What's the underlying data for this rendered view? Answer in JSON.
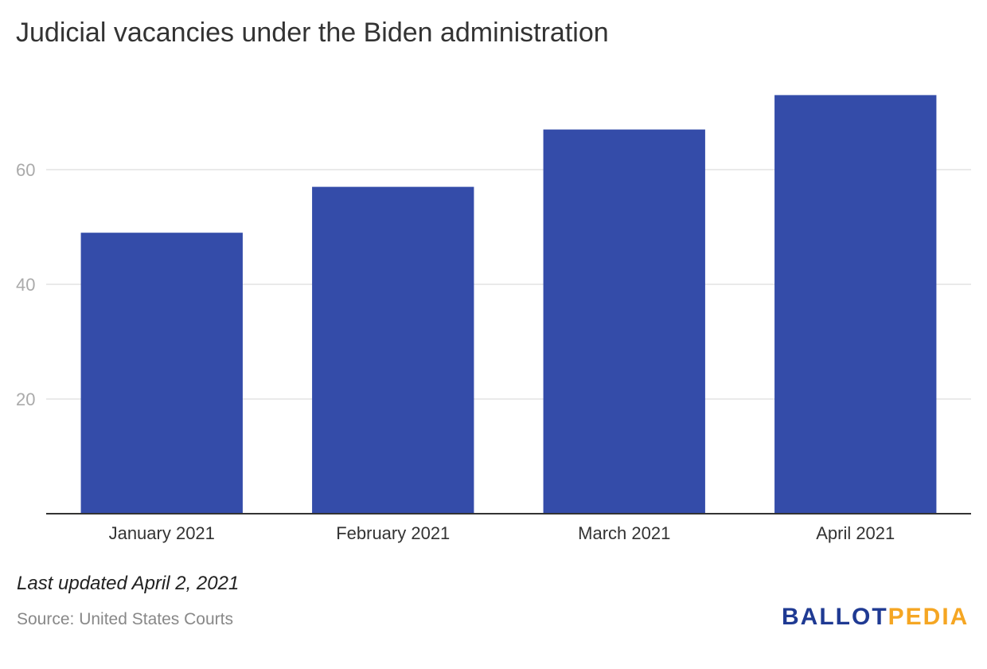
{
  "title": "Judicial vacancies under the Biden administration",
  "note": "Last updated April 2, 2021",
  "source": "Source: United States Courts",
  "logo": {
    "part1": "BALLOT",
    "part2": "PEDIA"
  },
  "colors": {
    "bar": "#344ca9",
    "grid": "#e4e4e4",
    "axis": "#333333",
    "tick": "#aaaaaa",
    "category_label": "#333333"
  },
  "chart_data": {
    "type": "bar",
    "categories": [
      "January 2021",
      "February 2021",
      "March 2021",
      "April 2021"
    ],
    "values": [
      49,
      57,
      67,
      73
    ],
    "ylim": [
      0,
      75
    ],
    "yticks": [
      20,
      40,
      60
    ],
    "grid": true,
    "legend": "none"
  }
}
